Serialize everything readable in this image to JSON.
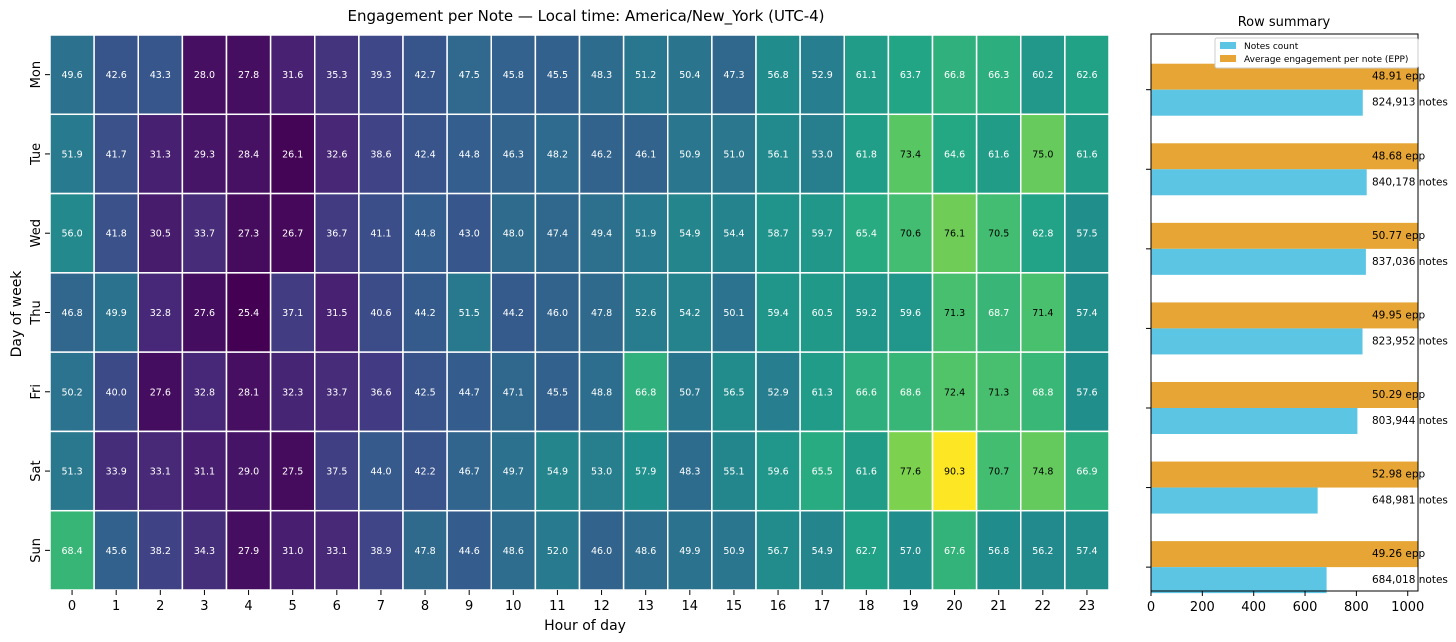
{
  "chart_data": [
    {
      "type": "heatmap",
      "title": "Engagement per Note — Local time: America/New_York (UTC-4)",
      "xlabel": "Hour of day",
      "ylabel": "Day of week",
      "x": [
        "0",
        "1",
        "2",
        "3",
        "4",
        "5",
        "6",
        "7",
        "8",
        "9",
        "10",
        "11",
        "12",
        "13",
        "14",
        "15",
        "16",
        "17",
        "18",
        "19",
        "20",
        "21",
        "22",
        "23"
      ],
      "y": [
        "Mon",
        "Tue",
        "Wed",
        "Thu",
        "Fri",
        "Sat",
        "Sun"
      ],
      "colormap": "viridis",
      "vmin": 25.4,
      "vmax": 90.3,
      "values": [
        [
          49.6,
          42.6,
          43.3,
          28.0,
          27.8,
          31.6,
          35.3,
          39.3,
          42.7,
          47.5,
          45.8,
          45.5,
          48.3,
          51.2,
          50.4,
          47.3,
          56.8,
          52.9,
          61.1,
          63.7,
          66.8,
          66.3,
          60.2,
          62.6
        ],
        [
          51.9,
          41.7,
          31.3,
          29.3,
          28.4,
          26.1,
          32.6,
          38.6,
          42.4,
          44.8,
          46.3,
          48.2,
          46.2,
          46.1,
          50.9,
          51.0,
          56.1,
          53.0,
          61.8,
          73.4,
          64.6,
          61.6,
          75.0,
          61.6
        ],
        [
          56.0,
          41.8,
          30.5,
          33.7,
          27.3,
          26.7,
          36.7,
          41.1,
          44.8,
          43.0,
          48.0,
          47.4,
          49.4,
          51.9,
          54.9,
          54.4,
          58.7,
          59.7,
          65.4,
          70.6,
          76.1,
          70.5,
          62.8,
          57.5
        ],
        [
          46.8,
          49.9,
          32.8,
          27.6,
          25.4,
          37.1,
          31.5,
          40.6,
          44.2,
          51.5,
          44.2,
          46.0,
          47.8,
          52.6,
          54.2,
          50.1,
          59.4,
          60.5,
          59.2,
          59.6,
          71.3,
          68.7,
          71.4,
          57.4
        ],
        [
          50.2,
          40.0,
          27.6,
          32.8,
          28.1,
          32.3,
          33.7,
          36.6,
          42.5,
          44.7,
          47.1,
          45.5,
          48.8,
          66.8,
          50.7,
          56.5,
          52.9,
          61.3,
          66.6,
          68.6,
          72.4,
          71.3,
          68.8,
          57.6
        ],
        [
          51.3,
          33.9,
          33.1,
          31.1,
          29.0,
          27.5,
          37.5,
          44.0,
          42.2,
          46.7,
          49.7,
          54.9,
          53.0,
          57.9,
          48.3,
          55.1,
          59.6,
          65.5,
          61.6,
          77.6,
          90.3,
          70.7,
          74.8,
          66.9
        ],
        [
          68.4,
          45.6,
          38.2,
          34.3,
          27.9,
          31.0,
          33.1,
          38.9,
          47.8,
          44.6,
          48.6,
          52.0,
          46.0,
          48.6,
          49.9,
          50.9,
          56.7,
          54.9,
          62.7,
          57.0,
          67.6,
          56.8,
          56.2,
          57.4
        ]
      ]
    },
    {
      "type": "bar",
      "orientation": "horizontal",
      "title": "Row summary",
      "categories": [
        "Mon",
        "Tue",
        "Wed",
        "Thu",
        "Fri",
        "Sat",
        "Sun"
      ],
      "xlim": [
        0,
        1040
      ],
      "xticks": [
        "0",
        "200",
        "400",
        "600",
        "800",
        "1000"
      ],
      "legend_placement": "top-right",
      "series": [
        {
          "name": "Notes count",
          "color": "#5bc5e3",
          "values": [
            824.913,
            840.178,
            837.036,
            823.952,
            803.944,
            648.981,
            684.018
          ],
          "labels": [
            "824,913 notes",
            "840,178 notes",
            "837,036 notes",
            "823,952 notes",
            "803,944 notes",
            "648,981 notes",
            "684,018 notes"
          ]
        },
        {
          "name": "Average engagement per note (EPP)",
          "color": "#e6a535",
          "values": [
            1040,
            1040,
            1040,
            1040,
            1040,
            1040,
            1040
          ],
          "labels": [
            "48.91 epp",
            "48.68 epp",
            "50.77 epp",
            "49.95 epp",
            "50.29 epp",
            "52.98 epp",
            "49.26 epp"
          ]
        }
      ]
    }
  ]
}
